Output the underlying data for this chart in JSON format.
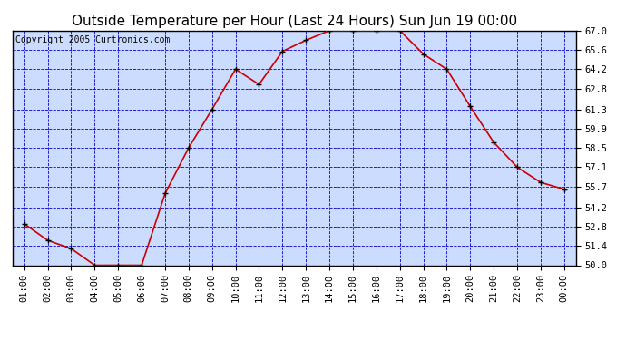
{
  "title": "Outside Temperature per Hour (Last 24 Hours) Sun Jun 19 00:00",
  "copyright": "Copyright 2005 Curtronics.com",
  "hours": [
    "01:00",
    "02:00",
    "03:00",
    "04:00",
    "05:00",
    "06:00",
    "07:00",
    "08:00",
    "09:00",
    "10:00",
    "11:00",
    "12:00",
    "13:00",
    "14:00",
    "15:00",
    "16:00",
    "17:00",
    "18:00",
    "19:00",
    "20:00",
    "21:00",
    "22:00",
    "23:00",
    "00:00"
  ],
  "temps": [
    53.0,
    51.8,
    51.2,
    50.0,
    50.0,
    50.0,
    55.2,
    58.5,
    61.3,
    64.2,
    63.1,
    65.5,
    66.3,
    67.0,
    67.0,
    67.0,
    67.0,
    65.3,
    64.2,
    61.5,
    58.9,
    57.1,
    56.0,
    55.5
  ],
  "line_color": "#cc0000",
  "marker_color": "#000000",
  "bg_color": "#ffffff",
  "plot_area_color": "#ccdcff",
  "grid_color": "#0000cc",
  "border_color": "#000000",
  "title_color": "#000000",
  "copyright_color": "#000000",
  "ytick_labels": [
    "50.0",
    "51.4",
    "52.8",
    "54.2",
    "55.7",
    "57.1",
    "58.5",
    "59.9",
    "61.3",
    "62.8",
    "64.2",
    "65.6",
    "67.0"
  ],
  "ytick_values": [
    50.0,
    51.4,
    52.8,
    54.2,
    55.7,
    57.1,
    58.5,
    59.9,
    61.3,
    62.8,
    64.2,
    65.6,
    67.0
  ],
  "ylim": [
    50.0,
    67.0
  ],
  "title_fontsize": 11,
  "copyright_fontsize": 7,
  "tick_fontsize": 7.5
}
